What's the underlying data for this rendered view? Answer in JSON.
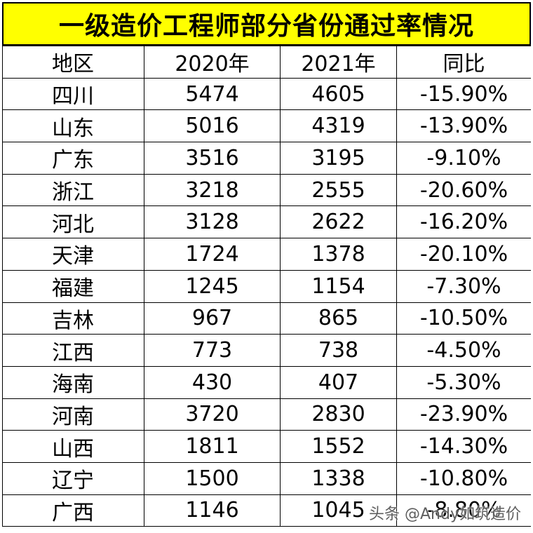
{
  "title": "一级造价工程师部分省份通过率情况",
  "headers": [
    "地区",
    "2020年",
    "2021年",
    "同比"
  ],
  "rows": [
    {
      "region": "四川",
      "y2020": "5474",
      "y2021": "4605",
      "yoy": "-15.90%"
    },
    {
      "region": "山东",
      "y2020": "5016",
      "y2021": "4319",
      "yoy": "-13.90%"
    },
    {
      "region": "广东",
      "y2020": "3516",
      "y2021": "3195",
      "yoy": "-9.10%"
    },
    {
      "region": "浙江",
      "y2020": "3218",
      "y2021": "2555",
      "yoy": "-20.60%"
    },
    {
      "region": "河北",
      "y2020": "3128",
      "y2021": "2622",
      "yoy": "-16.20%"
    },
    {
      "region": "天津",
      "y2020": "1724",
      "y2021": "1378",
      "yoy": "-20.10%"
    },
    {
      "region": "福建",
      "y2020": "1245",
      "y2021": "1154",
      "yoy": "-7.30%"
    },
    {
      "region": "吉林",
      "y2020": "967",
      "y2021": "865",
      "yoy": "-10.50%"
    },
    {
      "region": "江西",
      "y2020": "773",
      "y2021": "738",
      "yoy": "-4.50%"
    },
    {
      "region": "海南",
      "y2020": "430",
      "y2021": "407",
      "yoy": "-5.30%"
    },
    {
      "region": "河南",
      "y2020": "3720",
      "y2021": "2830",
      "yoy": "-23.90%"
    },
    {
      "region": "山西",
      "y2020": "1811",
      "y2021": "1552",
      "yoy": "-14.30%"
    },
    {
      "region": "辽宁",
      "y2020": "1500",
      "y2021": "1338",
      "yoy": "-10.80%"
    },
    {
      "region": "广西",
      "y2020": "1146",
      "y2021": "1045",
      "yoy": "-8.80%"
    }
  ],
  "watermark": "头条 @Andy如筑造价",
  "colors": {
    "title_background": "#ffff00",
    "grid_lines": "#000000"
  }
}
